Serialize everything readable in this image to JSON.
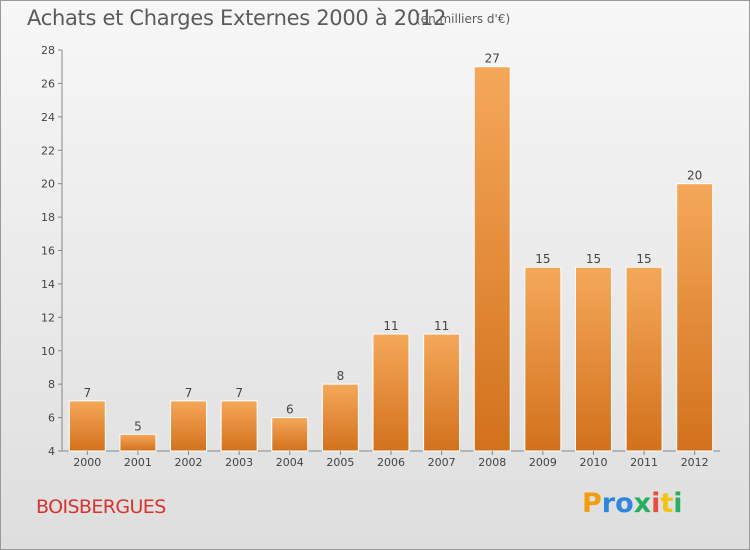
{
  "header": {
    "title": "Achats et Charges Externes 2000 à 2012",
    "subtitle": "(en milliers d'€)"
  },
  "footer": {
    "commune": "BOISBERGUES",
    "logo_letters": [
      "P",
      "r",
      "o",
      "x",
      "i",
      "t",
      "i"
    ],
    "logo_colors": [
      "#f39c12",
      "#2e86de",
      "#2e86de",
      "#27ae60",
      "#e74c3c",
      "#f1c40f",
      "#27ae60"
    ]
  },
  "chart_data": {
    "type": "bar",
    "categories": [
      "2000",
      "2001",
      "2002",
      "2003",
      "2004",
      "2005",
      "2006",
      "2007",
      "2008",
      "2009",
      "2010",
      "2011",
      "2012"
    ],
    "values": [
      7,
      5,
      7,
      7,
      6,
      8,
      11,
      11,
      27,
      15,
      15,
      15,
      20
    ],
    "ylim": [
      4,
      28
    ],
    "yticks": [
      4,
      6,
      8,
      10,
      12,
      14,
      16,
      18,
      20,
      22,
      24,
      26,
      28
    ],
    "bar_color": "#f09a3c",
    "bar_color_light": "#f5a85a",
    "bar_color_dark": "#d2711c",
    "grid": false
  }
}
